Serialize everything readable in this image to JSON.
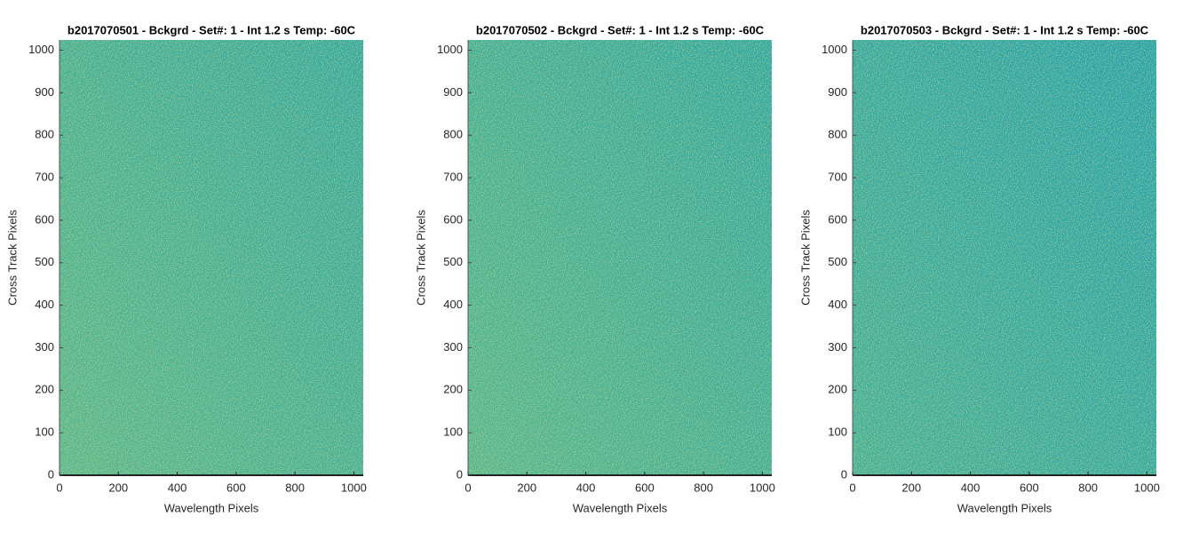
{
  "chart_data": [
    {
      "type": "image",
      "title": "b2017070501 - Bckgrd - Set#: 1 - Int 1.2 s Temp: -60C",
      "x_label": "Wavelength Pixels",
      "y_label": "Cross Track Pixels",
      "xlim": [
        0,
        1032
      ],
      "ylim": [
        0,
        1024
      ],
      "xticks": [
        0,
        200,
        400,
        600,
        800,
        1000
      ],
      "yticks": [
        0,
        100,
        200,
        300,
        400,
        500,
        600,
        700,
        800,
        900,
        1000
      ]
    },
    {
      "type": "image",
      "title": "b2017070502 - Bckgrd - Set#: 1 - Int 1.2 s Temp: -60C",
      "x_label": "Wavelength Pixels",
      "y_label": "Cross Track Pixels",
      "xlim": [
        0,
        1032
      ],
      "ylim": [
        0,
        1024
      ],
      "xticks": [
        0,
        200,
        400,
        600,
        800,
        1000
      ],
      "yticks": [
        0,
        100,
        200,
        300,
        400,
        500,
        600,
        700,
        800,
        900,
        1000
      ]
    },
    {
      "type": "image",
      "title": "b2017070503 - Bckgrd - Set#: 1 - Int 1.2 s Temp: -60C",
      "x_label": "Wavelength Pixels",
      "y_label": "Cross Track Pixels",
      "xlim": [
        0,
        1032
      ],
      "ylim": [
        0,
        1024
      ],
      "xticks": [
        0,
        200,
        400,
        600,
        800,
        1000
      ],
      "yticks": [
        0,
        100,
        200,
        300,
        400,
        500,
        600,
        700,
        800,
        900,
        1000
      ]
    }
  ]
}
